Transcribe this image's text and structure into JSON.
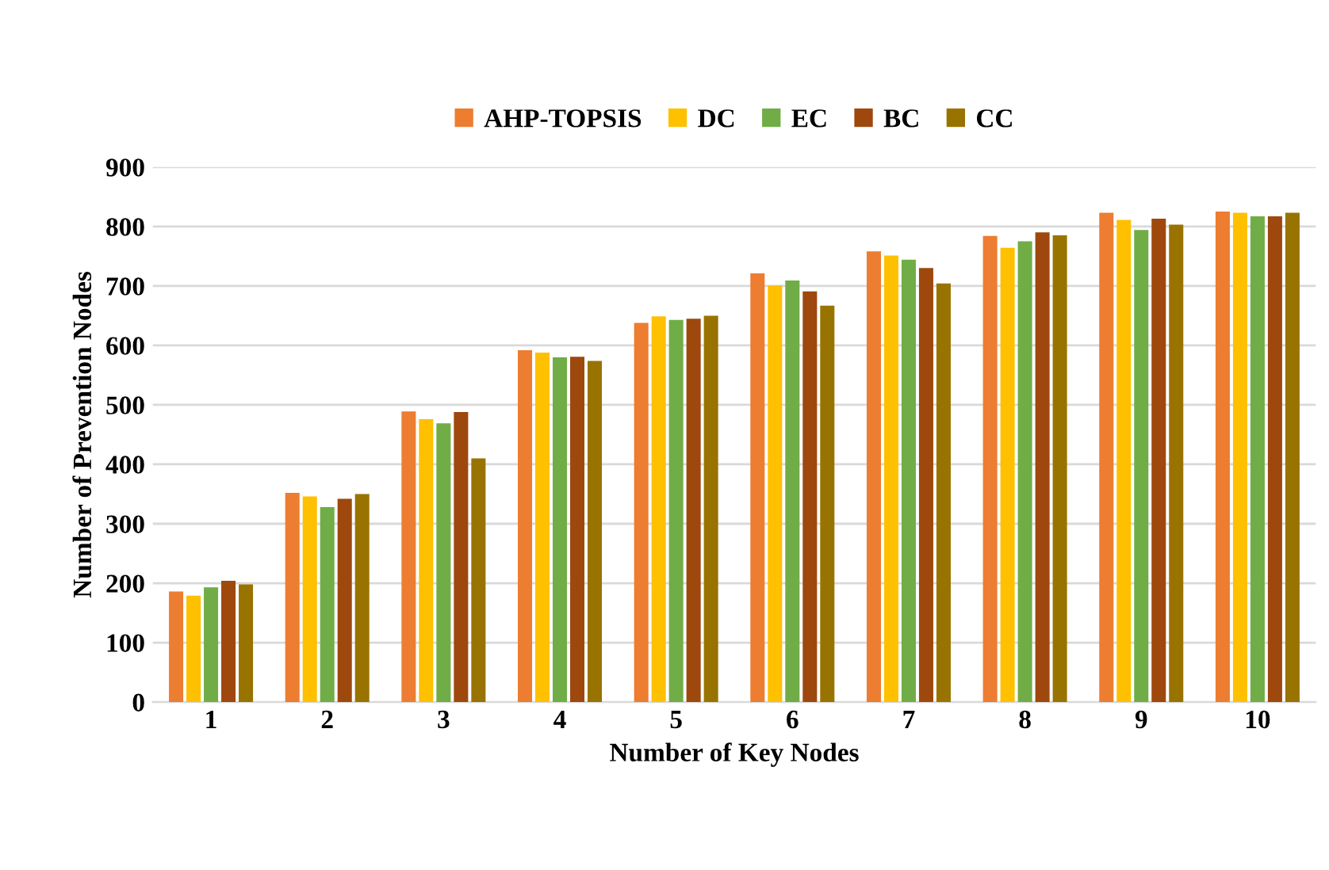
{
  "chart_data": {
    "type": "bar",
    "xlabel": "Number of Key Nodes",
    "ylabel": "Number of Prevention Nodes",
    "categories": [
      "1",
      "2",
      "3",
      "4",
      "5",
      "6",
      "7",
      "8",
      "9",
      "10"
    ],
    "ylim": [
      0,
      900
    ],
    "yticks": [
      0,
      100,
      200,
      300,
      400,
      500,
      600,
      700,
      800,
      900
    ],
    "grid": "y",
    "legend": "top",
    "series": [
      {
        "name": "AHP-TOPSIS",
        "color": "#ed7d31",
        "values": [
          186,
          352,
          489,
          592,
          638,
          721,
          758,
          784,
          823,
          825
        ]
      },
      {
        "name": "DC",
        "color": "#ffc000",
        "values": [
          179,
          346,
          476,
          588,
          649,
          701,
          751,
          764,
          811,
          823
        ]
      },
      {
        "name": "EC",
        "color": "#70ad47",
        "values": [
          193,
          328,
          469,
          580,
          643,
          709,
          744,
          775,
          794,
          817
        ]
      },
      {
        "name": "BC",
        "color": "#9e480e",
        "values": [
          204,
          342,
          488,
          581,
          645,
          691,
          730,
          790,
          813,
          817
        ]
      },
      {
        "name": "CC",
        "color": "#997300",
        "values": [
          198,
          350,
          410,
          574,
          650,
          667,
          704,
          785,
          803,
          823
        ]
      }
    ]
  }
}
